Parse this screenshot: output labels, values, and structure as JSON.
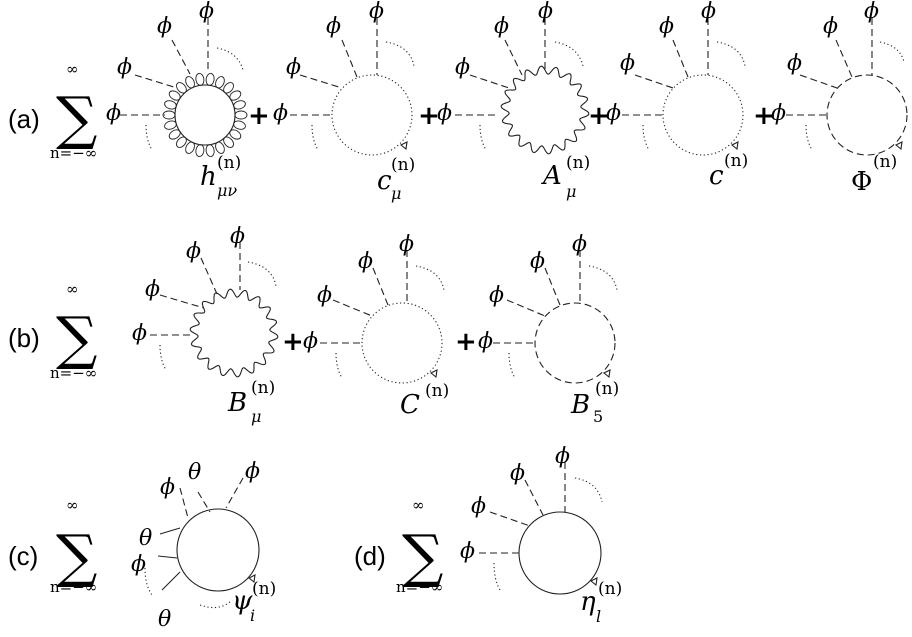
{
  "panels": {
    "a": {
      "label": "(a)",
      "sum_top": "∞",
      "sum_bottom": "n=−∞",
      "field_symbol": "ϕ",
      "plus": "+",
      "loops": [
        {
          "type": "graviton",
          "symbol": "h",
          "sub": "μν",
          "sup": "(n)"
        },
        {
          "type": "ghost",
          "symbol": "c",
          "sub": "μ",
          "sup": "(n)"
        },
        {
          "type": "photon",
          "symbol": "A",
          "sub": "μ",
          "sup": "(n)"
        },
        {
          "type": "ghost",
          "symbol": "c",
          "sub": "",
          "sup": "(n)"
        },
        {
          "type": "scalar",
          "symbol": "Φ",
          "sub": "",
          "sup": "(n)"
        }
      ]
    },
    "b": {
      "label": "(b)",
      "sum_top": "∞",
      "sum_bottom": "n=−∞",
      "field_symbol": "ϕ",
      "plus": "+",
      "loops": [
        {
          "type": "photon",
          "symbol": "B",
          "sub": "μ",
          "sup": "(n)"
        },
        {
          "type": "ghost",
          "symbol": "C",
          "sub": "",
          "sup": "(n)"
        },
        {
          "type": "scalar",
          "symbol": "B",
          "sub": "5",
          "sup": "(n)"
        }
      ]
    },
    "c": {
      "label": "(c)",
      "sum_top": "∞",
      "sum_bottom": "n=−∞",
      "field_symbol": "ϕ",
      "grassmann_symbol": "θ",
      "loop": {
        "type": "fermion",
        "symbol": "ψ",
        "sub": "i",
        "sup": "(n)"
      }
    },
    "d": {
      "label": "(d)",
      "sum_top": "∞",
      "sum_bottom": "n=−∞",
      "field_symbol": "ϕ",
      "loop": {
        "type": "fermion",
        "symbol": "η",
        "sub": "l",
        "sup": "(n)"
      }
    }
  },
  "colors": {
    "ink": "#000000",
    "line": "#222222",
    "background": "#ffffff"
  }
}
